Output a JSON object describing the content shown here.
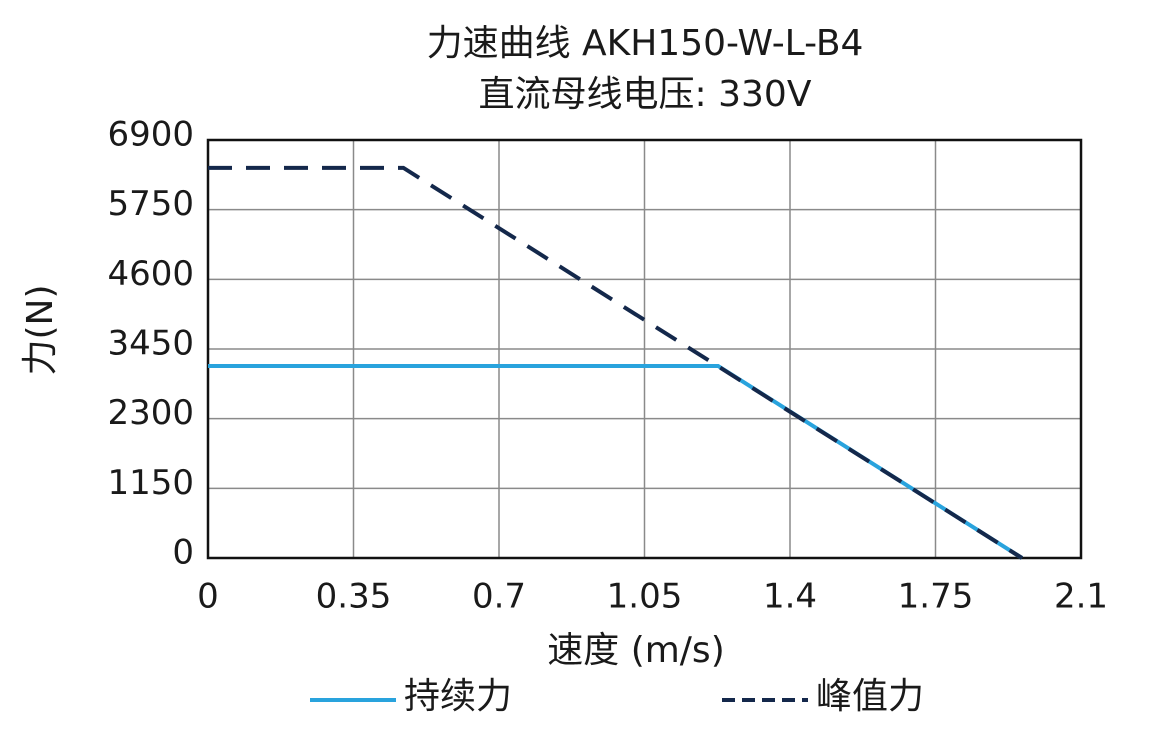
{
  "chart_data": {
    "type": "line",
    "title": "力速曲线 AKH150-W-L-B4",
    "subtitle": "直流母线电压: 330V",
    "x_label": "速度 (m/s)",
    "y_label": "力(N)",
    "xlim": [
      0,
      2.1
    ],
    "xticks": [
      0,
      0.35,
      0.7,
      1.05,
      1.4,
      1.75,
      2.1
    ],
    "ylim": [
      0,
      6900
    ],
    "yticks": [
      0,
      1150,
      2300,
      3450,
      4600,
      5750,
      6900
    ],
    "grid": true,
    "legend": "bottom",
    "series": [
      {
        "name": "持续力",
        "color": "#29a3dd",
        "style": "solid",
        "x": [
          0,
          1.227,
          1.958
        ],
        "values": [
          3170,
          3170,
          0
        ]
      },
      {
        "name": "峰值力",
        "color": "#14284b",
        "style": "dashed",
        "x": [
          0,
          0.47,
          1.958
        ],
        "values": [
          6440,
          6440,
          0
        ]
      }
    ]
  }
}
